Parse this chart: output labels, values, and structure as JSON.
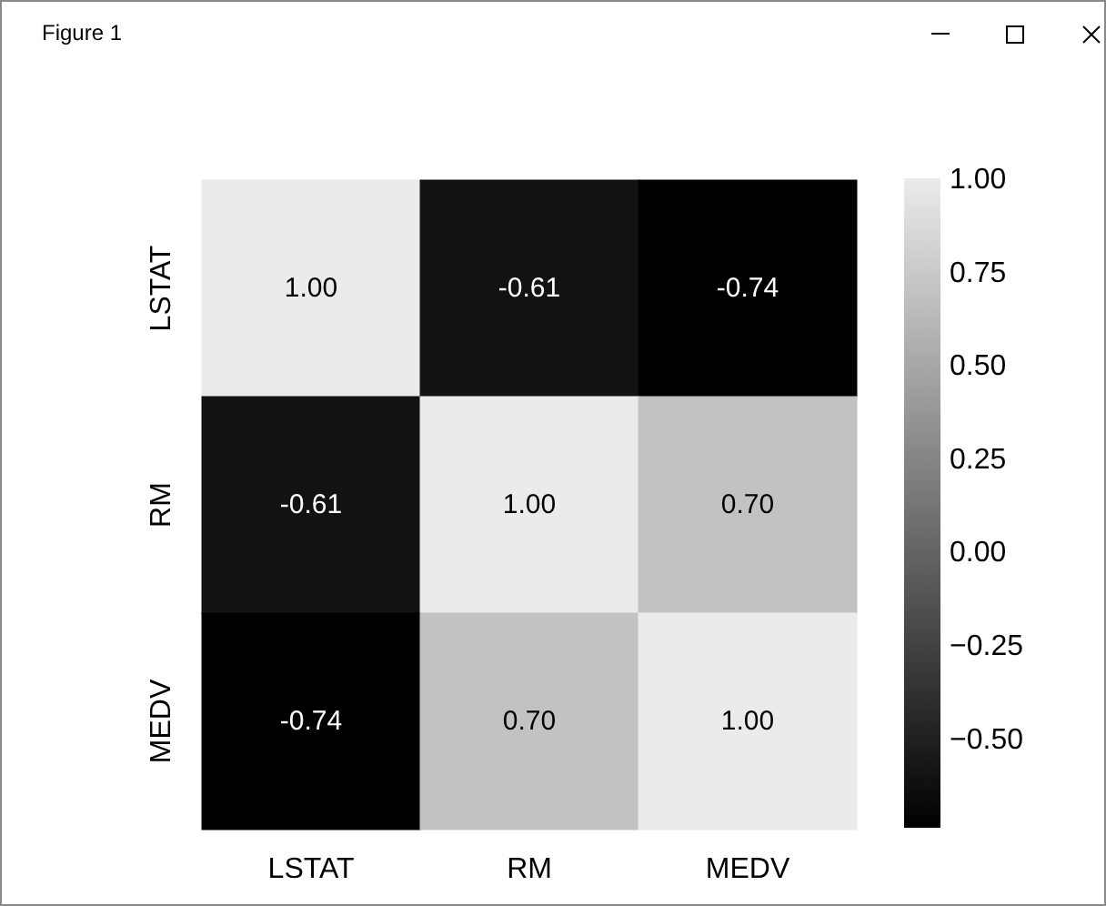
{
  "chart_data": {
    "type": "heatmap",
    "annotations": [
      "Figure 1"
    ],
    "categories": [
      "LSTAT",
      "RM",
      "MEDV"
    ],
    "y_categories": [
      "LSTAT",
      "RM",
      "MEDV"
    ],
    "cells": [
      [
        1.0,
        -0.61,
        -0.74
      ],
      [
        -0.61,
        1.0,
        0.7
      ],
      [
        -0.74,
        0.7,
        1.0
      ]
    ],
    "cell_labels": [
      [
        "1.00",
        "-0.61",
        "-0.74"
      ],
      [
        "-0.61",
        "1.00",
        "0.70"
      ],
      [
        "-0.74",
        "0.70",
        "1.00"
      ]
    ],
    "clim": [
      -0.74,
      1.0
    ],
    "cticks": [
      {
        "value": -0.5,
        "label": "−0.50"
      },
      {
        "value": -0.25,
        "label": "−0.25"
      },
      {
        "value": 0,
        "label": "0.00"
      },
      {
        "value": 0.25,
        "label": "0.25"
      },
      {
        "value": 0.5,
        "label": "0.50"
      },
      {
        "value": 0.75,
        "label": "0.75"
      },
      {
        "value": 1.0,
        "label": "1.00"
      }
    ]
  }
}
